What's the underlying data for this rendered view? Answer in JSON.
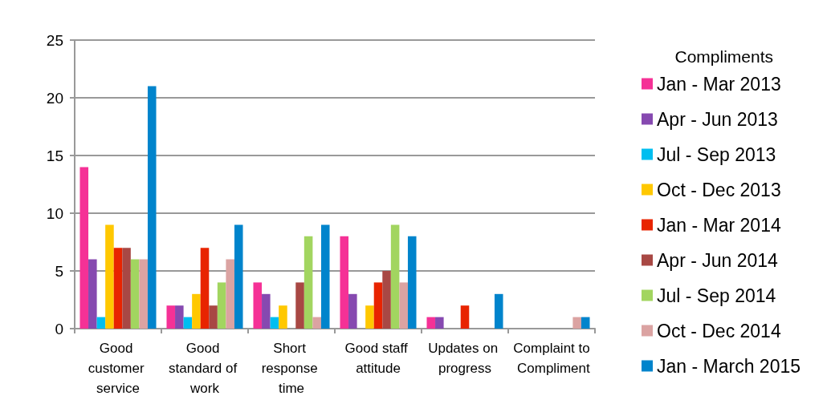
{
  "chart_data": {
    "type": "bar",
    "legend_title": "Compliments",
    "categories": [
      "Good customer service",
      "Good standard of work",
      "Short response time",
      "Good staff attitude",
      "Updates on progress",
      "Complaint to Compliment"
    ],
    "series": [
      {
        "name": "Jan - Mar 2013",
        "color": "#f53196",
        "values": [
          14,
          2,
          4,
          8,
          1,
          0
        ]
      },
      {
        "name": "Apr - Jun 2013",
        "color": "#8649b0",
        "values": [
          6,
          2,
          3,
          3,
          1,
          0
        ]
      },
      {
        "name": "Jul - Sep 2013",
        "color": "#00bef0",
        "values": [
          1,
          1,
          1,
          0,
          0,
          0
        ]
      },
      {
        "name": "Oct - Dec 2013",
        "color": "#ffc800",
        "values": [
          9,
          3,
          2,
          2,
          0,
          0
        ]
      },
      {
        "name": "Jan - Mar 2014",
        "color": "#e82400",
        "values": [
          7,
          7,
          0,
          4,
          2,
          0
        ]
      },
      {
        "name": "Apr - Jun 2014",
        "color": "#a84844",
        "values": [
          7,
          2,
          4,
          5,
          0,
          0
        ]
      },
      {
        "name": "Jul - Sep 2014",
        "color": "#a2d560",
        "values": [
          6,
          4,
          8,
          9,
          0,
          0
        ]
      },
      {
        "name": "Oct - Dec 2014",
        "color": "#dba3a2",
        "values": [
          6,
          6,
          1,
          4,
          0,
          1
        ]
      },
      {
        "name": "Jan - March 2015",
        "color": "#0084cc",
        "values": [
          21,
          9,
          9,
          8,
          3,
          1
        ]
      }
    ],
    "ylim": [
      0,
      25
    ],
    "yticks": [
      0,
      5,
      10,
      15,
      20,
      25
    ],
    "grid": "y",
    "legend": "right"
  }
}
